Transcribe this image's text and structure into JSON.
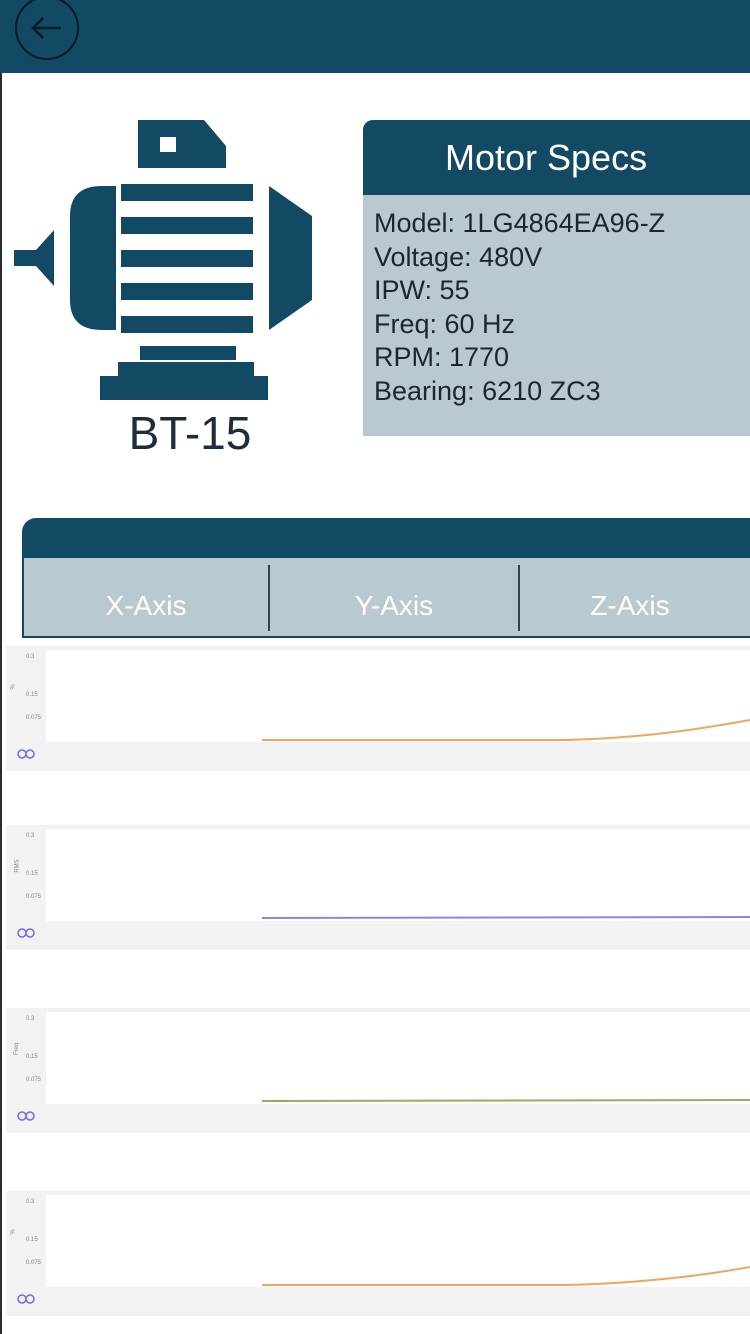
{
  "header": {
    "back_icon": "back-arrow-icon"
  },
  "motor": {
    "tag": "BT-15",
    "icon": "electric-motor-icon",
    "color": "#124a64"
  },
  "specs": {
    "title": "Motor Specs",
    "lines": [
      "Model: 1LG4864EA96-Z",
      "Voltage: 480V",
      "IPW: 55",
      "Freq: 60 Hz",
      "RPM: 1770",
      "Bearing: 6210 ZC3"
    ]
  },
  "axes": {
    "tabs": [
      "X-Axis",
      "Y-Axis",
      "Z-Axis"
    ]
  },
  "charts": [
    {
      "y_ticks": [
        "0.3",
        "0.15",
        "0.075"
      ],
      "y_label": "%",
      "color": "#f4a45a",
      "icon": "reset-zoom-icon"
    },
    {
      "y_ticks": [
        "0.3",
        "0.15",
        "0.075"
      ],
      "y_label": "RMS",
      "color": "#8b84f0",
      "icon": "reset-zoom-icon"
    },
    {
      "y_ticks": [
        "0.3",
        "0.15",
        "0.075"
      ],
      "y_label": "Freq",
      "color": "#8ab35a",
      "icon": "reset-zoom-icon"
    },
    {
      "y_ticks": [
        "0.3",
        "0.15",
        "0.075"
      ],
      "y_label": "%",
      "color": "#f4a45a",
      "icon": "reset-zoom-icon"
    }
  ],
  "colors": {
    "primary": "#124a64",
    "panel": "#b9c9d1"
  }
}
